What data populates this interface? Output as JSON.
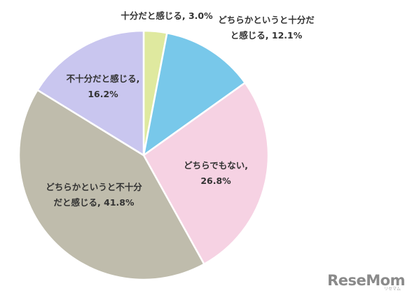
{
  "chart_data": {
    "type": "pie",
    "slices": [
      {
        "label_lines": [
          "十分だと感じる, 3.0%"
        ],
        "value": 3.0,
        "color": "#dfe99f"
      },
      {
        "label_lines": [
          "どちらかというと十分だ",
          "と感じる, 12.1%"
        ],
        "value": 12.1,
        "color": "#78c8ea"
      },
      {
        "label_lines": [
          "どちらでもない,",
          "26.8%"
        ],
        "value": 26.8,
        "color": "#f6d2e3"
      },
      {
        "label_lines": [
          "どちらかというと不十分",
          "だと感じる, 41.8%"
        ],
        "value": 41.8,
        "color": "#bfbcac"
      },
      {
        "label_lines": [
          "不十分だと感じる,",
          "16.2%"
        ],
        "value": 16.2,
        "color": "#c9c6ef"
      }
    ]
  },
  "watermark": {
    "text": "ReseMom",
    "sub": "リセマム"
  }
}
